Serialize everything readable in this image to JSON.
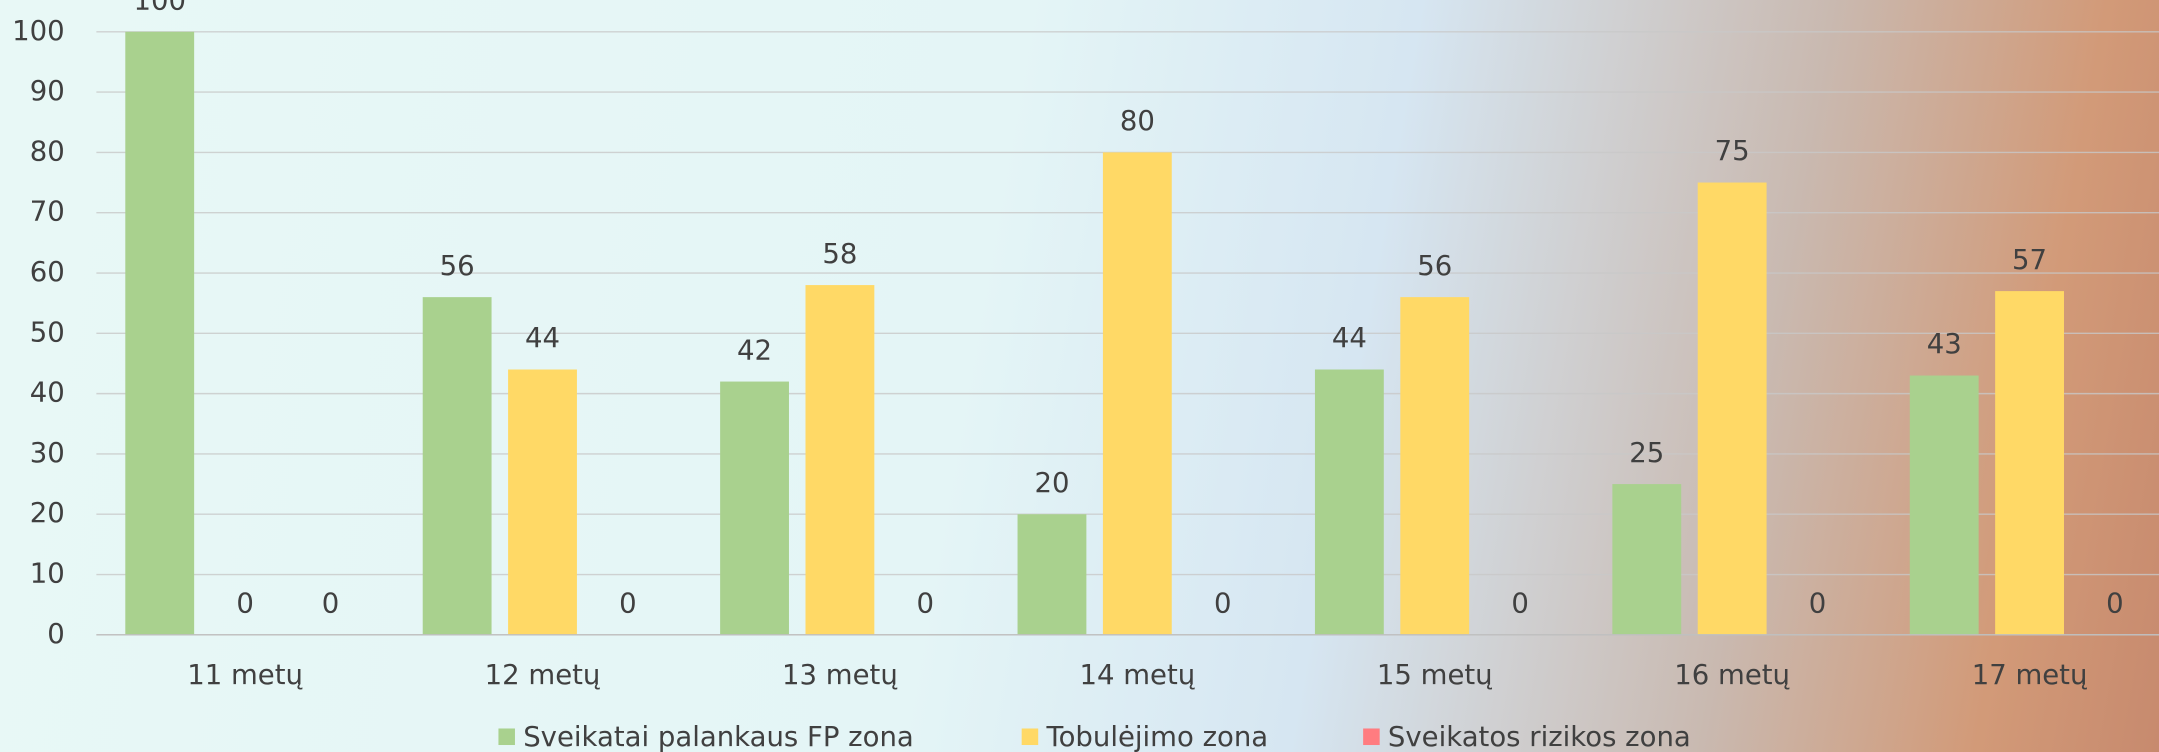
{
  "chart_data": {
    "type": "bar",
    "categories": [
      "11 metų",
      "12 metų",
      "13 metų",
      "14 metų",
      "15 metų",
      "16 metų",
      "17 metų"
    ],
    "series": [
      {
        "name": "Sveikatai palankaus FP zona",
        "color": "#a9d18e",
        "values": [
          100,
          56,
          42,
          20,
          44,
          25,
          43
        ]
      },
      {
        "name": "Tobulėjimo zona",
        "color": "#ffd966",
        "values": [
          0,
          44,
          58,
          80,
          56,
          75,
          57
        ]
      },
      {
        "name": "Sveikatos rizikos zona",
        "color": "#ff7c80",
        "values": [
          0,
          0,
          0,
          0,
          0,
          0,
          0
        ]
      }
    ],
    "ylim": [
      0,
      100
    ],
    "yticks": [
      0,
      10,
      20,
      30,
      40,
      50,
      60,
      70,
      80,
      90,
      100
    ],
    "grid": true,
    "legend": "bottom"
  }
}
